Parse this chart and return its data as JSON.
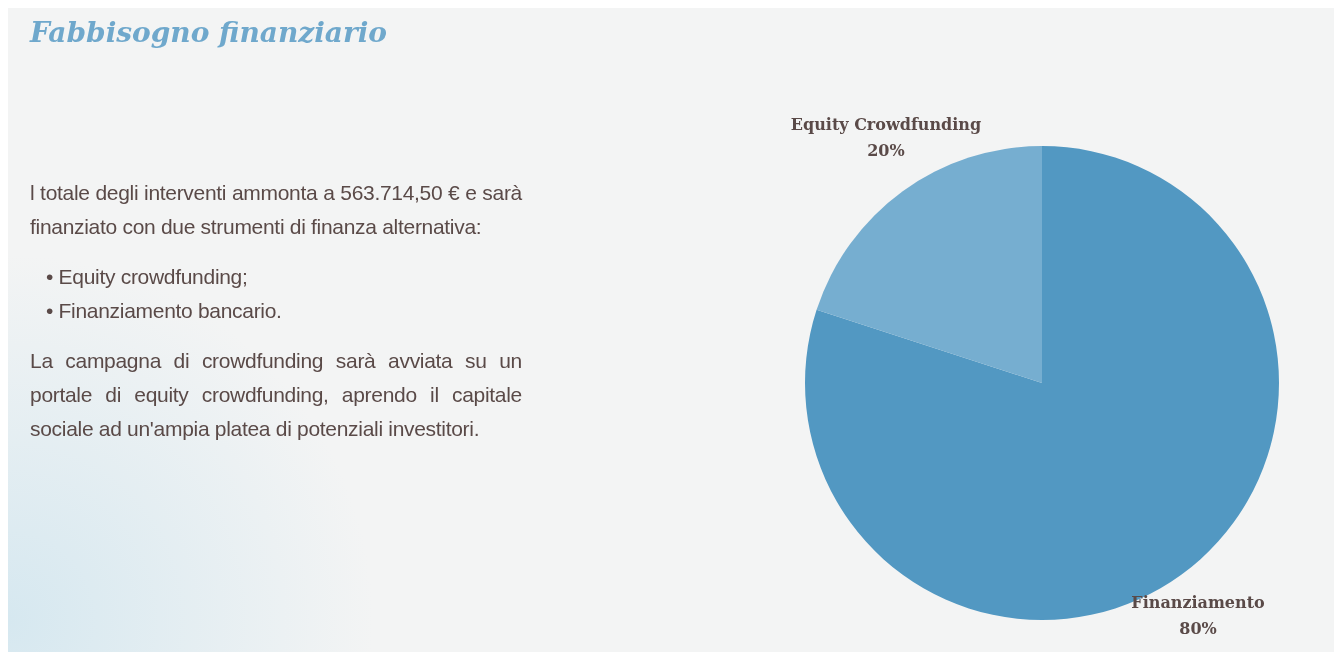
{
  "chart_data": {
    "type": "pie",
    "title": "Fabbisogno finanziario",
    "categories": [
      "Finanziamento",
      "Equity Crowdfunding"
    ],
    "values": [
      80,
      20
    ],
    "colors": [
      "#5298c2",
      "#76aed0"
    ],
    "value_labels": [
      "80%",
      "20%"
    ],
    "annotations": [
      "l totale degli interventi ammonta a 563.714,50 € e sarà finanziato con due strumenti di finanza alternativa:",
      "• Equity crowdfunding;",
      "• Finanziamento bancario.",
      "La campagna di crowdfunding sarà avviata su un portale di equity crowdfunding, aprendo il capitale sociale ad un'ampia platea di potenziali investitori."
    ]
  }
}
